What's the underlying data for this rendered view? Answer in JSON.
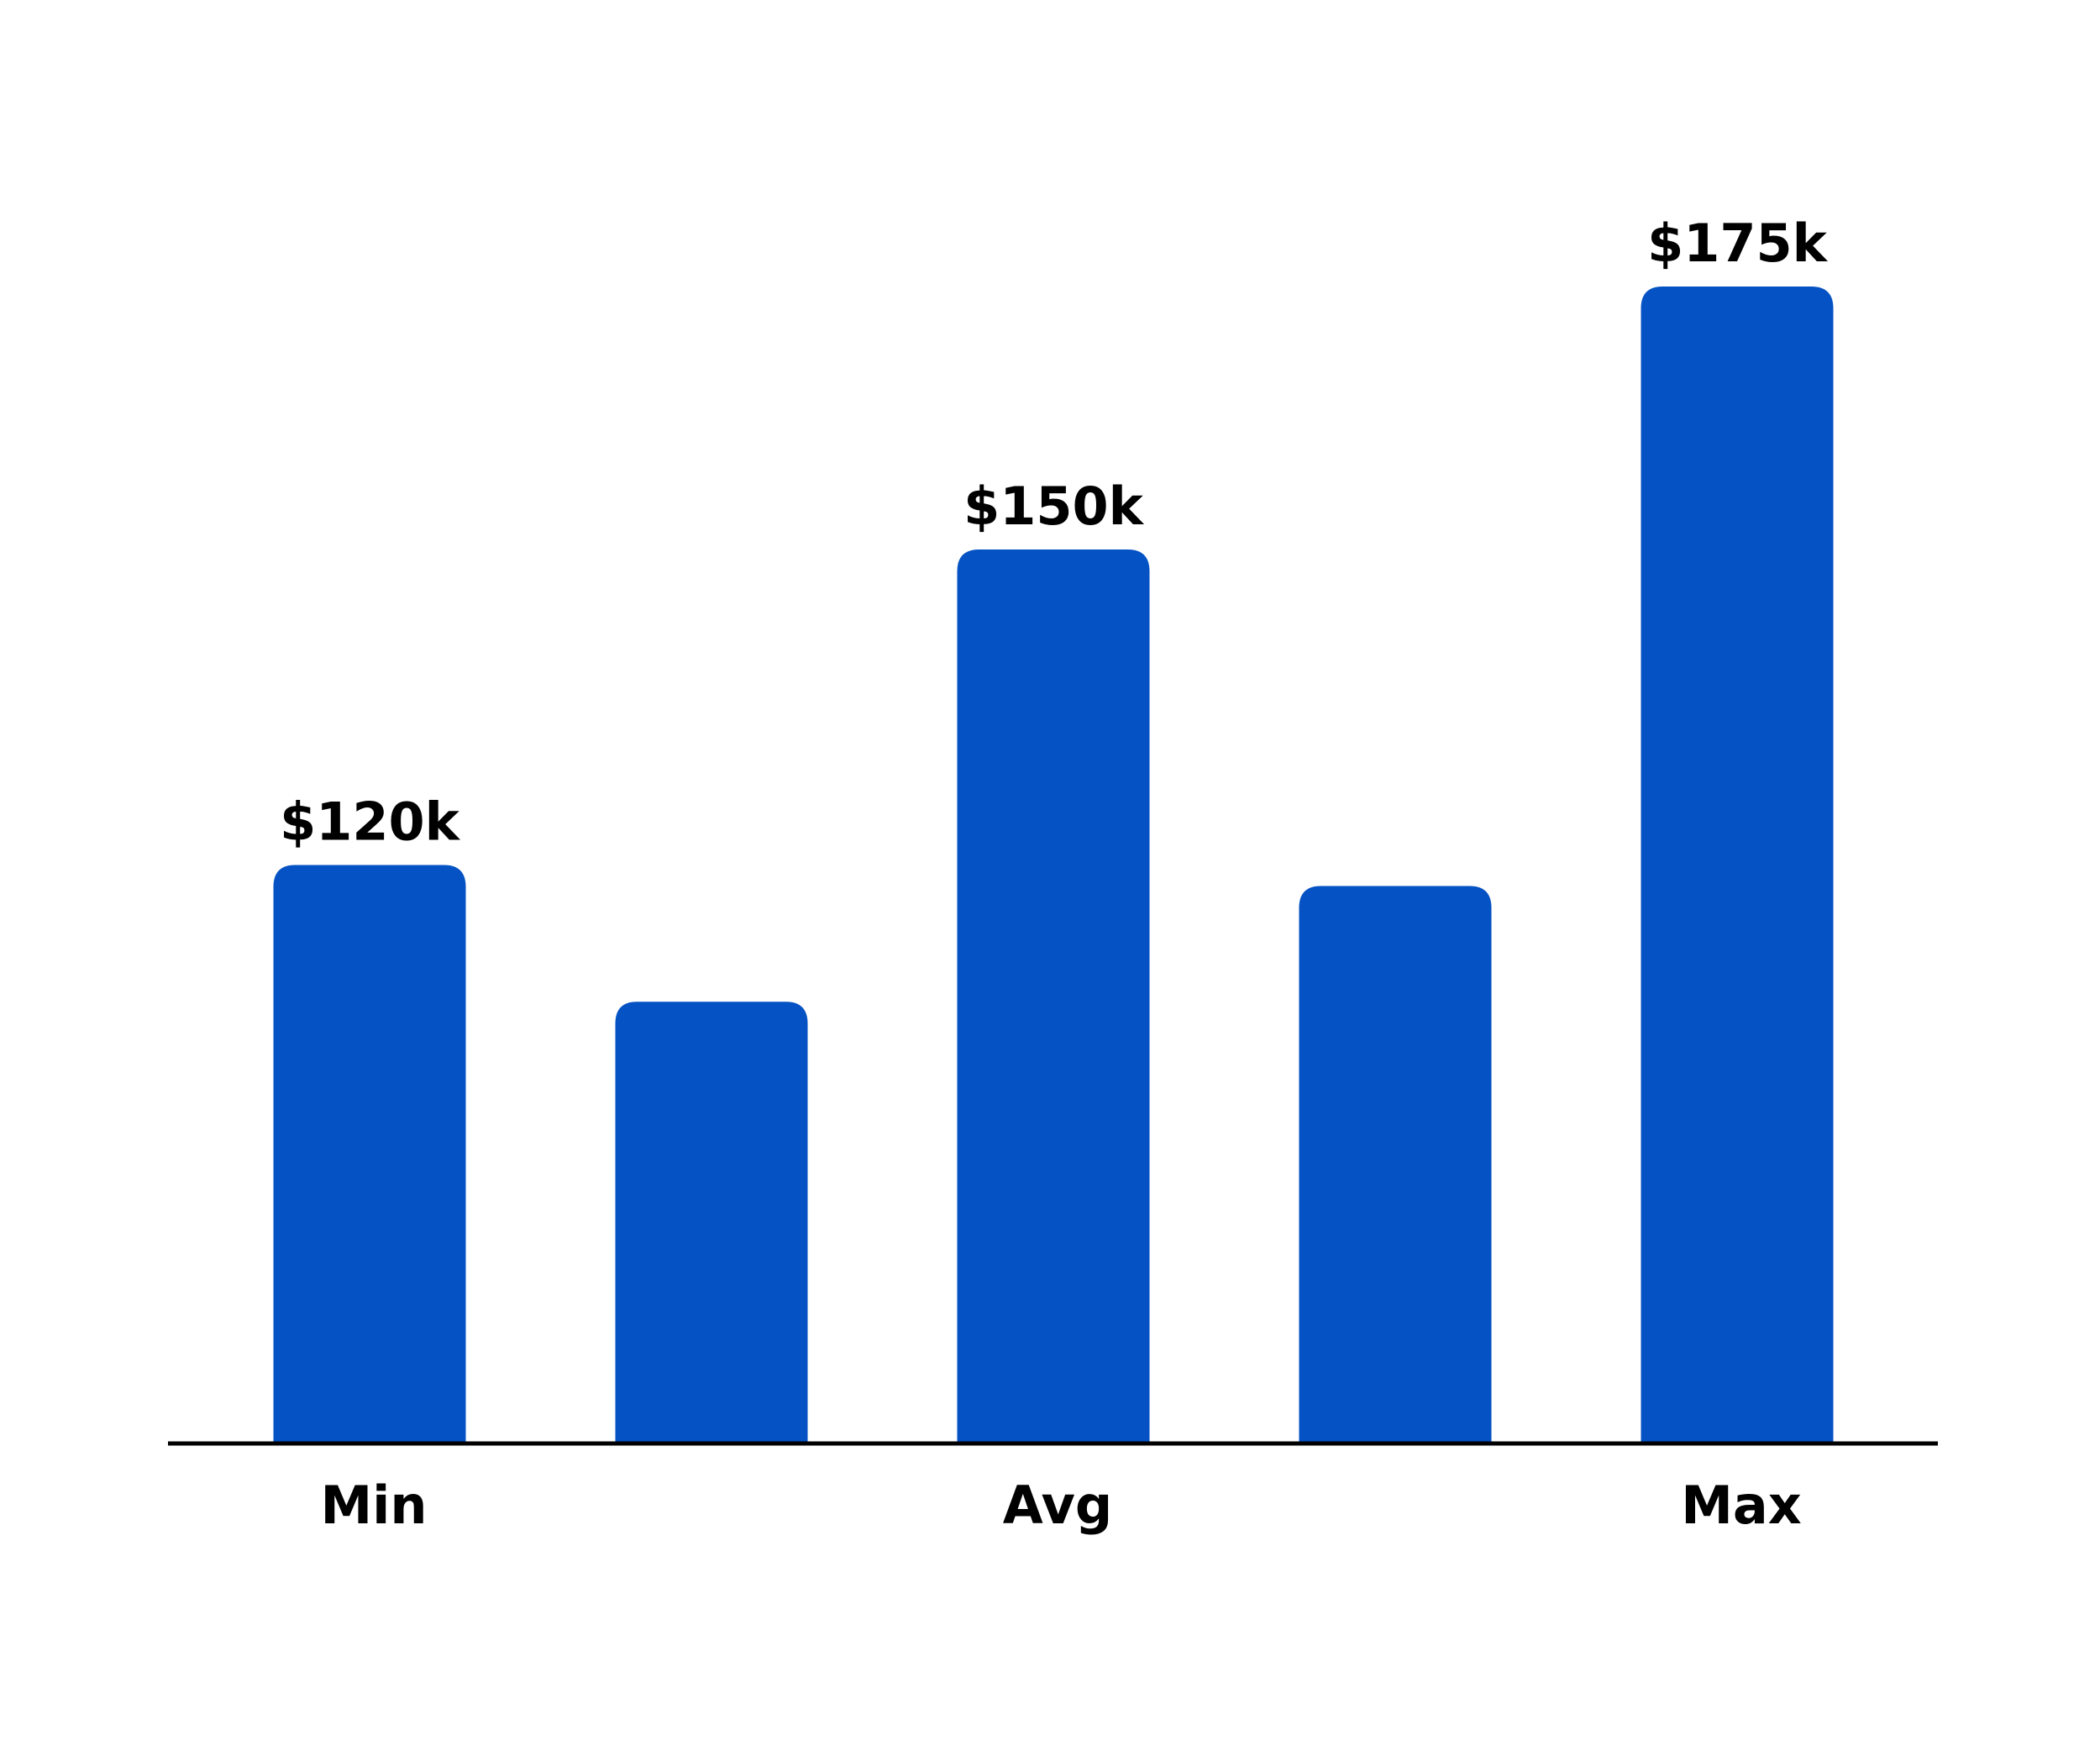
{
  "chart_data": {
    "type": "bar",
    "categories": [
      "Min",
      null,
      "Avg",
      null,
      "Max"
    ],
    "values": [
      120,
      107,
      150,
      118,
      175
    ],
    "value_labels": [
      "$120k",
      null,
      "$150k",
      null,
      "$175k"
    ],
    "color": "#0452c4",
    "ylim": [
      65,
      175
    ]
  }
}
